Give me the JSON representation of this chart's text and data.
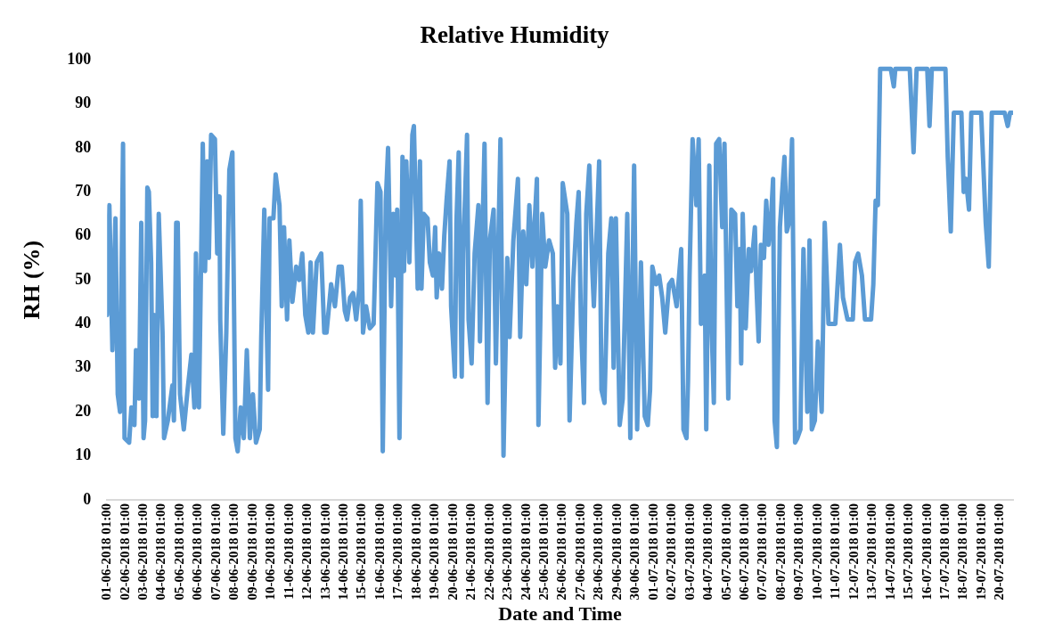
{
  "chart_data": {
    "type": "line",
    "title": "Relative Humidity",
    "xlabel": "Date and Time",
    "ylabel": "RH (%)",
    "xlim": [
      "2018-06-01T01:00",
      "2018-07-20T18:00"
    ],
    "xticks": [
      {
        "value": "2018-06-01T01:00",
        "label": "01-06-2018 01:00"
      },
      {
        "value": "2018-06-02T01:00",
        "label": "02-06-2018 01:00"
      },
      {
        "value": "2018-06-03T01:00",
        "label": "03-06-2018 01:00"
      },
      {
        "value": "2018-06-04T01:00",
        "label": "04-06-2018 01:00"
      },
      {
        "value": "2018-06-05T01:00",
        "label": "05-06-2018 01:00"
      },
      {
        "value": "2018-06-06T01:00",
        "label": "06-06-2018 01:00"
      },
      {
        "value": "2018-06-07T01:00",
        "label": "07-06-2018 01:00"
      },
      {
        "value": "2018-06-08T01:00",
        "label": "08-06-2018 01:00"
      },
      {
        "value": "2018-06-09T01:00",
        "label": "09-06-2018 01:00"
      },
      {
        "value": "2018-06-10T01:00",
        "label": "10-06-2018 01:00"
      },
      {
        "value": "2018-06-11T01:00",
        "label": "11-06-2018 01:00"
      },
      {
        "value": "2018-06-12T01:00",
        "label": "12-06-2018 01:00"
      },
      {
        "value": "2018-06-13T01:00",
        "label": "13-06-2018 01:00"
      },
      {
        "value": "2018-06-14T01:00",
        "label": "14-06-2018 01:00"
      },
      {
        "value": "2018-06-15T01:00",
        "label": "15-06-2018 01:00"
      },
      {
        "value": "2018-06-16T01:00",
        "label": "16-06-2018 01:00"
      },
      {
        "value": "2018-06-17T01:00",
        "label": "17-06-2018 01:00"
      },
      {
        "value": "2018-06-18T01:00",
        "label": "18-06-2018 01:00"
      },
      {
        "value": "2018-06-19T01:00",
        "label": "19-06-2018 01:00"
      },
      {
        "value": "2018-06-20T01:00",
        "label": "20-06-2018 01:00"
      },
      {
        "value": "2018-06-21T01:00",
        "label": "21-06-2018 01:00"
      },
      {
        "value": "2018-06-22T01:00",
        "label": "22-06-2018 01:00"
      },
      {
        "value": "2018-06-23T01:00",
        "label": "23-06-2018 01:00"
      },
      {
        "value": "2018-06-24T01:00",
        "label": "24-06-2018 01:00"
      },
      {
        "value": "2018-06-25T01:00",
        "label": "25-06-2018 01:00"
      },
      {
        "value": "2018-06-26T01:00",
        "label": "26-06-2018 01:00"
      },
      {
        "value": "2018-06-27T01:00",
        "label": "27-06-2018 01:00"
      },
      {
        "value": "2018-06-28T01:00",
        "label": "28-06-2018 01:00"
      },
      {
        "value": "2018-06-29T01:00",
        "label": "29-06-2018 01:00"
      },
      {
        "value": "2018-06-30T01:00",
        "label": "30-06-2018 01:00"
      },
      {
        "value": "2018-07-01T01:00",
        "label": "01-07-2018 01:00"
      },
      {
        "value": "2018-07-02T01:00",
        "label": "02-07-2018 01:00"
      },
      {
        "value": "2018-07-03T01:00",
        "label": "03-07-2018 01:00"
      },
      {
        "value": "2018-07-04T01:00",
        "label": "04-07-2018 01:00"
      },
      {
        "value": "2018-07-05T01:00",
        "label": "05-07-2018 01:00"
      },
      {
        "value": "2018-07-06T01:00",
        "label": "06-07-2018 01:00"
      },
      {
        "value": "2018-07-07T01:00",
        "label": "07-07-2018 01:00"
      },
      {
        "value": "2018-07-08T01:00",
        "label": "08-07-2018 01:00"
      },
      {
        "value": "2018-07-09T01:00",
        "label": "09-07-2018 01:00"
      },
      {
        "value": "2018-07-10T01:00",
        "label": "10-07-2018 01:00"
      },
      {
        "value": "2018-07-11T01:00",
        "label": "11-07-2018 01:00"
      },
      {
        "value": "2018-07-12T01:00",
        "label": "12-07-2018 01:00"
      },
      {
        "value": "2018-07-13T01:00",
        "label": "13-07-2018 01:00"
      },
      {
        "value": "2018-07-14T01:00",
        "label": "14-07-2018 01:00"
      },
      {
        "value": "2018-07-15T01:00",
        "label": "15-07-2018 01:00"
      },
      {
        "value": "2018-07-16T01:00",
        "label": "16-07-2018 01:00"
      },
      {
        "value": "2018-07-17T01:00",
        "label": "17-07-2018 01:00"
      },
      {
        "value": "2018-07-18T01:00",
        "label": "18-07-2018 01:00"
      },
      {
        "value": "2018-07-19T01:00",
        "label": "19-07-2018 01:00"
      },
      {
        "value": "2018-07-20T01:00",
        "label": "20-07-2018 01:00"
      }
    ],
    "ylim": [
      0,
      100
    ],
    "yticks": [
      0,
      10,
      20,
      30,
      40,
      50,
      60,
      70,
      80,
      90,
      100
    ],
    "grid": false,
    "legend": false,
    "marker": "none",
    "series": [
      {
        "color": "#5b9bd5",
        "x": [
          "2018-06-01T01:00",
          "2018-06-01T04:00",
          "2018-06-01T08:00",
          "2018-06-01T12:00",
          "2018-06-01T15:00",
          "2018-06-01T18:00",
          "2018-06-01T22:00",
          "2018-06-02T00:00",
          "2018-06-02T06:00",
          "2018-06-02T09:00",
          "2018-06-02T13:00",
          "2018-06-02T15:00",
          "2018-06-02T19:00",
          "2018-06-02T22:00",
          "2018-06-03T01:00",
          "2018-06-03T03:00",
          "2018-06-03T06:00",
          "2018-06-03T08:00",
          "2018-06-03T11:00",
          "2018-06-03T13:00",
          "2018-06-03T15:00",
          "2018-06-03T18:00",
          "2018-06-03T21:00",
          "2018-06-04T02:00",
          "2018-06-04T04:00",
          "2018-06-04T09:00",
          "2018-06-04T15:00",
          "2018-06-04T17:00",
          "2018-06-04T20:00",
          "2018-06-04T22:00",
          "2018-06-05T01:00",
          "2018-06-05T06:00",
          "2018-06-05T11:00",
          "2018-06-05T16:00",
          "2018-06-05T20:00",
          "2018-06-05T22:00",
          "2018-06-06T02:00",
          "2018-06-06T07:00",
          "2018-06-06T10:00",
          "2018-06-06T13:00",
          "2018-06-06T15:00",
          "2018-06-06T18:00",
          "2018-06-06T23:00",
          "2018-06-07T02:00",
          "2018-06-07T05:00",
          "2018-06-07T06:00",
          "2018-06-07T10:00",
          "2018-06-07T14:00",
          "2018-06-07T18:00",
          "2018-06-07T22:00",
          "2018-06-08T02:00",
          "2018-06-08T05:00",
          "2018-06-08T09:00",
          "2018-06-08T13:00",
          "2018-06-08T17:00",
          "2018-06-08T21:00",
          "2018-06-09T01:00",
          "2018-06-09T05:00",
          "2018-06-09T10:00",
          "2018-06-09T12:00",
          "2018-06-09T16:00",
          "2018-06-09T21:00",
          "2018-06-09T23:00",
          "2018-06-10T04:00",
          "2018-06-10T07:00",
          "2018-06-10T12:00",
          "2018-06-10T15:00",
          "2018-06-10T18:00",
          "2018-06-10T22:00",
          "2018-06-11T01:00",
          "2018-06-11T05:00",
          "2018-06-11T10:00",
          "2018-06-11T14:00",
          "2018-06-11T18:00",
          "2018-06-11T22:00",
          "2018-06-12T02:00",
          "2018-06-12T05:00",
          "2018-06-12T08:00",
          "2018-06-12T13:00",
          "2018-06-12T19:00",
          "2018-06-12T23:00",
          "2018-06-13T02:00",
          "2018-06-13T08:00",
          "2018-06-13T13:00",
          "2018-06-13T18:00",
          "2018-06-13T22:00",
          "2018-06-14T02:00",
          "2018-06-14T05:00",
          "2018-06-14T09:00",
          "2018-06-14T13:00",
          "2018-06-14T17:00",
          "2018-06-14T21:00",
          "2018-06-14T23:00",
          "2018-06-15T02:00",
          "2018-06-15T06:00",
          "2018-06-15T11:00",
          "2018-06-15T16:00",
          "2018-06-15T21:00",
          "2018-06-16T01:00",
          "2018-06-16T04:00",
          "2018-06-16T08:00",
          "2018-06-16T11:00",
          "2018-06-16T15:00",
          "2018-06-16T18:00",
          "2018-06-16T21:00",
          "2018-06-16T23:00",
          "2018-06-17T02:00",
          "2018-06-17T06:00",
          "2018-06-17T08:00",
          "2018-06-17T11:00",
          "2018-06-17T15:00",
          "2018-06-17T19:00",
          "2018-06-17T21:00",
          "2018-06-18T02:00",
          "2018-06-18T05:00",
          "2018-06-18T07:00",
          "2018-06-18T10:00",
          "2018-06-18T15:00",
          "2018-06-18T18:00",
          "2018-06-18T22:00",
          "2018-06-19T01:00",
          "2018-06-19T03:00",
          "2018-06-19T06:00",
          "2018-06-19T10:00",
          "2018-06-19T13:00",
          "2018-06-19T16:00",
          "2018-06-19T20:00",
          "2018-06-19T22:00",
          "2018-06-20T03:00",
          "2018-06-20T05:00",
          "2018-06-20T08:00",
          "2018-06-20T12:00",
          "2018-06-20T14:00",
          "2018-06-20T19:00",
          "2018-06-20T21:00",
          "2018-06-21T01:00",
          "2018-06-21T05:00",
          "2018-06-21T10:00",
          "2018-06-21T12:00",
          "2018-06-21T18:00",
          "2018-06-21T22:00",
          "2018-06-22T01:00",
          "2018-06-22T06:00",
          "2018-06-22T09:00",
          "2018-06-22T15:00",
          "2018-06-22T19:00",
          "2018-06-23T00:00",
          "2018-06-23T03:00",
          "2018-06-23T08:00",
          "2018-06-23T14:00",
          "2018-06-23T17:00",
          "2018-06-23T21:00",
          "2018-06-24T01:00",
          "2018-06-24T05:00",
          "2018-06-24T09:00",
          "2018-06-24T15:00",
          "2018-06-24T17:00",
          "2018-06-24T22:00",
          "2018-06-25T02:00",
          "2018-06-25T07:00",
          "2018-06-25T12:00",
          "2018-06-25T15:00",
          "2018-06-25T18:00",
          "2018-06-25T22:00",
          "2018-06-26T01:00",
          "2018-06-26T07:00",
          "2018-06-26T10:00",
          "2018-06-26T15:00",
          "2018-06-26T19:00",
          "2018-06-26T22:00",
          "2018-06-27T01:00",
          "2018-06-27T05:00",
          "2018-06-27T08:00",
          "2018-06-27T12:00",
          "2018-06-27T16:00",
          "2018-06-27T18:00",
          "2018-06-28T01:00",
          "2018-06-28T04:00",
          "2018-06-28T08:00",
          "2018-06-28T13:00",
          "2018-06-28T17:00",
          "2018-06-28T20:00",
          "2018-06-28T23:00",
          "2018-06-29T04:00",
          "2018-06-29T08:00",
          "2018-06-29T14:00",
          "2018-06-29T18:00",
          "2018-06-29T23:00",
          "2018-06-30T03:00",
          "2018-06-30T08:00",
          "2018-06-30T13:00",
          "2018-06-30T17:00",
          "2018-06-30T20:00",
          "2018-06-30T23:00",
          "2018-07-01T04:00",
          "2018-07-01T08:00",
          "2018-07-01T12:00",
          "2018-07-01T16:00",
          "2018-07-01T21:00",
          "2018-07-02T01:00",
          "2018-07-02T07:00",
          "2018-07-02T13:00",
          "2018-07-02T16:00",
          "2018-07-02T20:00",
          "2018-07-02T22:00",
          "2018-07-03T00:00",
          "2018-07-03T04:00",
          "2018-07-03T09:00",
          "2018-07-03T12:00",
          "2018-07-03T15:00",
          "2018-07-03T20:00",
          "2018-07-03T22:00",
          "2018-07-04T02:00",
          "2018-07-04T05:00",
          "2018-07-04T08:00",
          "2018-07-04T11:00",
          "2018-07-04T15:00",
          "2018-07-04T19:00",
          "2018-07-04T22:00",
          "2018-07-05T03:00",
          "2018-07-05T07:00",
          "2018-07-05T12:00",
          "2018-07-05T15:00",
          "2018-07-05T18:00",
          "2018-07-05T20:00",
          "2018-07-05T22:00",
          "2018-07-06T02:00",
          "2018-07-06T06:00",
          "2018-07-06T09:00",
          "2018-07-06T14:00",
          "2018-07-06T16:00",
          "2018-07-06T19:00",
          "2018-07-06T22:00",
          "2018-07-07T02:00",
          "2018-07-07T05:00",
          "2018-07-07T08:00",
          "2018-07-07T11:00",
          "2018-07-07T14:00",
          "2018-07-07T16:00",
          "2018-07-07T19:00",
          "2018-07-07T23:00",
          "2018-07-08T05:00",
          "2018-07-08T08:00",
          "2018-07-08T11:00",
          "2018-07-08T15:00",
          "2018-07-08T19:00",
          "2018-07-08T22:00",
          "2018-07-09T02:00",
          "2018-07-09T06:00",
          "2018-07-09T11:00",
          "2018-07-09T14:00",
          "2018-07-09T17:00",
          "2018-07-09T21:00",
          "2018-07-10T01:00",
          "2018-07-10T06:00",
          "2018-07-10T10:00",
          "2018-07-10T15:00",
          "2018-07-11T00:00",
          "2018-07-11T06:00",
          "2018-07-11T10:00",
          "2018-07-11T16:00",
          "2018-07-11T23:00",
          "2018-07-12T02:00",
          "2018-07-12T06:00",
          "2018-07-12T11:00",
          "2018-07-12T15:00",
          "2018-07-12T23:00",
          "2018-07-13T02:00",
          "2018-07-13T05:00",
          "2018-07-13T08:00",
          "2018-07-13T11:00",
          "2018-07-14T01:00",
          "2018-07-14T05:00",
          "2018-07-14T07:00",
          "2018-07-15T02:00",
          "2018-07-15T07:00",
          "2018-07-15T11:00",
          "2018-07-16T01:00",
          "2018-07-16T04:00",
          "2018-07-16T07:00",
          "2018-07-17T01:00",
          "2018-07-17T04:00",
          "2018-07-17T08:00",
          "2018-07-17T12:00",
          "2018-07-17T16:00",
          "2018-07-17T22:00",
          "2018-07-18T01:00",
          "2018-07-18T04:00",
          "2018-07-18T08:00",
          "2018-07-18T11:00",
          "2018-07-19T00:00",
          "2018-07-19T06:00",
          "2018-07-19T10:00",
          "2018-07-19T14:00",
          "2018-07-20T07:00",
          "2018-07-20T11:00",
          "2018-07-20T14:00",
          "2018-07-20T17:00"
        ],
        "values": [
          42,
          67,
          34,
          64,
          24,
          20,
          81,
          14,
          13,
          21,
          17,
          34,
          23,
          63,
          14,
          18,
          71,
          70,
          54,
          19,
          42,
          19,
          65,
          38,
          14,
          18,
          26,
          18,
          63,
          63,
          24,
          16,
          25,
          33,
          21,
          56,
          21,
          81,
          52,
          77,
          55,
          83,
          82,
          56,
          69,
          41,
          15,
          38,
          75,
          79,
          14,
          11,
          21,
          14,
          34,
          14,
          24,
          13,
          16,
          37,
          66,
          25,
          64,
          64,
          74,
          67,
          44,
          62,
          41,
          59,
          45,
          53,
          50,
          56,
          42,
          38,
          54,
          38,
          54,
          56,
          38,
          38,
          49,
          44,
          53,
          53,
          43,
          41,
          46,
          47,
          41,
          48,
          68,
          38,
          44,
          39,
          40,
          72,
          70,
          11,
          68,
          80,
          44,
          65,
          51,
          66,
          14,
          78,
          52,
          77,
          54,
          83,
          85,
          48,
          77,
          48,
          65,
          64,
          54,
          51,
          62,
          46,
          56,
          48,
          60,
          68,
          77,
          44,
          28,
          63,
          79,
          28,
          56,
          83,
          41,
          31,
          56,
          67,
          36,
          81,
          22,
          59,
          66,
          31,
          82,
          10,
          55,
          37,
          59,
          73,
          37,
          61,
          49,
          67,
          53,
          73,
          17,
          65,
          53,
          59,
          56,
          30,
          44,
          31,
          72,
          65,
          18,
          50,
          63,
          70,
          40,
          22,
          65,
          76,
          52,
          44,
          77,
          25,
          22,
          56,
          64,
          30,
          64,
          17,
          23,
          65,
          14,
          76,
          16,
          54,
          19,
          17,
          25,
          53,
          49,
          51,
          46,
          38,
          49,
          50,
          44,
          57,
          16,
          14,
          27,
          51,
          82,
          67,
          82,
          40,
          51,
          16,
          76,
          40,
          22,
          81,
          82,
          62,
          81,
          23,
          66,
          65,
          44,
          57,
          31,
          65,
          39,
          57,
          52,
          62,
          49,
          36,
          58,
          55,
          68,
          58,
          63,
          73,
          18,
          12,
          62,
          78,
          61,
          63,
          82,
          13,
          14,
          16,
          57,
          20,
          59,
          16,
          18,
          36,
          20,
          63,
          40,
          40,
          58,
          46,
          41,
          41,
          54,
          56,
          51,
          41,
          41,
          49,
          68,
          67,
          98,
          98,
          94,
          98,
          98,
          79,
          98,
          98,
          85,
          98,
          98,
          78,
          61,
          88,
          88,
          88,
          70,
          73,
          66,
          88,
          88,
          63,
          53,
          88,
          88,
          85,
          88,
          88
        ]
      }
    ]
  }
}
